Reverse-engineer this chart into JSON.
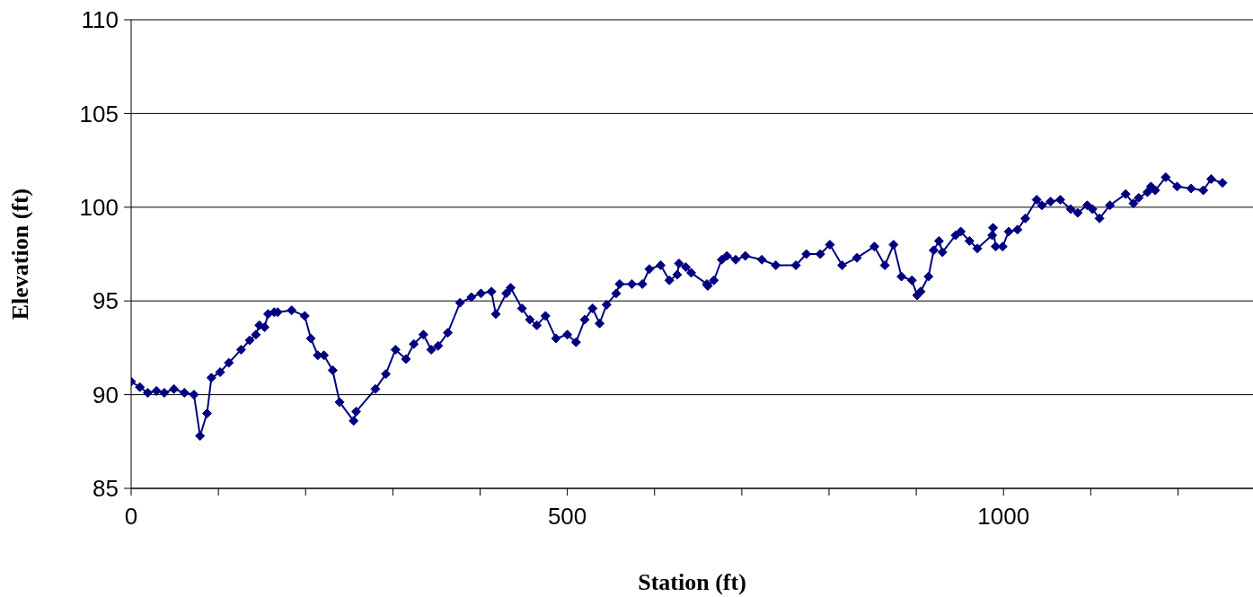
{
  "chart_data": {
    "type": "line",
    "xlabel": "Station (ft)",
    "ylabel": "Elevation (ft)",
    "x": [
      0,
      10,
      19,
      29,
      38,
      49,
      61,
      72,
      79,
      87,
      92,
      102,
      112,
      126,
      136,
      143,
      147,
      153,
      157,
      164,
      168,
      184,
      199,
      206,
      214,
      221,
      231,
      239,
      255,
      258,
      280,
      292,
      303,
      315,
      324,
      335,
      344,
      352,
      363,
      377,
      390,
      401,
      413,
      418,
      430,
      435,
      448,
      457,
      465,
      475,
      487,
      500,
      510,
      520,
      529,
      537,
      545,
      556,
      560,
      574,
      586,
      594,
      607,
      617,
      626,
      628,
      636,
      642,
      660,
      661,
      668,
      677,
      683,
      693,
      704,
      723,
      739,
      762,
      774,
      790,
      801,
      815,
      832,
      852,
      864,
      874,
      883,
      895,
      901,
      905,
      914,
      920,
      926,
      930,
      945,
      951,
      961,
      970,
      987,
      988,
      991,
      999,
      1006,
      1016,
      1025,
      1038,
      1044,
      1054,
      1065,
      1077,
      1085,
      1096,
      1102,
      1110,
      1122,
      1140,
      1149,
      1155,
      1165,
      1169,
      1174,
      1186,
      1199,
      1215,
      1229,
      1238,
      1251
    ],
    "series": [
      {
        "color": "#000080",
        "values": [
          90.7,
          90.4,
          90.1,
          90.2,
          90.1,
          90.3,
          90.1,
          90.0,
          87.8,
          89.0,
          90.9,
          91.2,
          91.7,
          92.4,
          92.9,
          93.2,
          93.7,
          93.6,
          94.3,
          94.4,
          94.4,
          94.5,
          94.2,
          93.0,
          92.1,
          92.1,
          91.3,
          89.6,
          88.6,
          89.1,
          90.3,
          91.1,
          92.4,
          91.9,
          92.7,
          93.2,
          92.4,
          92.6,
          93.3,
          94.9,
          95.2,
          95.4,
          95.5,
          94.3,
          95.4,
          95.7,
          94.6,
          94.0,
          93.7,
          94.2,
          93.0,
          93.2,
          92.8,
          94.0,
          94.6,
          93.8,
          94.8,
          95.4,
          95.9,
          95.9,
          95.9,
          96.7,
          96.9,
          96.1,
          96.4,
          97.0,
          96.8,
          96.5,
          95.9,
          95.8,
          96.1,
          97.2,
          97.4,
          97.2,
          97.4,
          97.2,
          96.9,
          96.9,
          97.5,
          97.5,
          98.0,
          96.9,
          97.3,
          97.9,
          96.9,
          98.0,
          96.3,
          96.1,
          95.3,
          95.5,
          96.3,
          97.7,
          98.2,
          97.6,
          98.5,
          98.7,
          98.2,
          97.8,
          98.5,
          98.9,
          97.9,
          97.9,
          98.7,
          98.8,
          99.4,
          100.4,
          100.1,
          100.3,
          100.4,
          99.9,
          99.7,
          100.1,
          99.9,
          99.4,
          100.1,
          100.7,
          100.2,
          100.5,
          100.8,
          101.1,
          100.9,
          101.6,
          101.1,
          101.0,
          100.9,
          101.5,
          101.3
        ]
      }
    ],
    "xlim": [
      0,
      1286
    ],
    "xticks": [
      0,
      {
        "value": 100,
        "label": null
      },
      {
        "value": 200,
        "label": null
      },
      {
        "value": 300,
        "label": null
      },
      {
        "value": 400,
        "label": null
      },
      500,
      {
        "value": 600,
        "label": null
      },
      {
        "value": 700,
        "label": null
      },
      {
        "value": 800,
        "label": null
      },
      {
        "value": 900,
        "label": null
      },
      1000,
      {
        "value": 1100,
        "label": null
      },
      {
        "value": 1200,
        "label": null
      }
    ],
    "ylim": [
      85,
      110
    ],
    "yticks": [
      85,
      90,
      95,
      100,
      105,
      110
    ],
    "grid": "y",
    "legend": false,
    "marker": "diamond",
    "line_style": "solid"
  }
}
